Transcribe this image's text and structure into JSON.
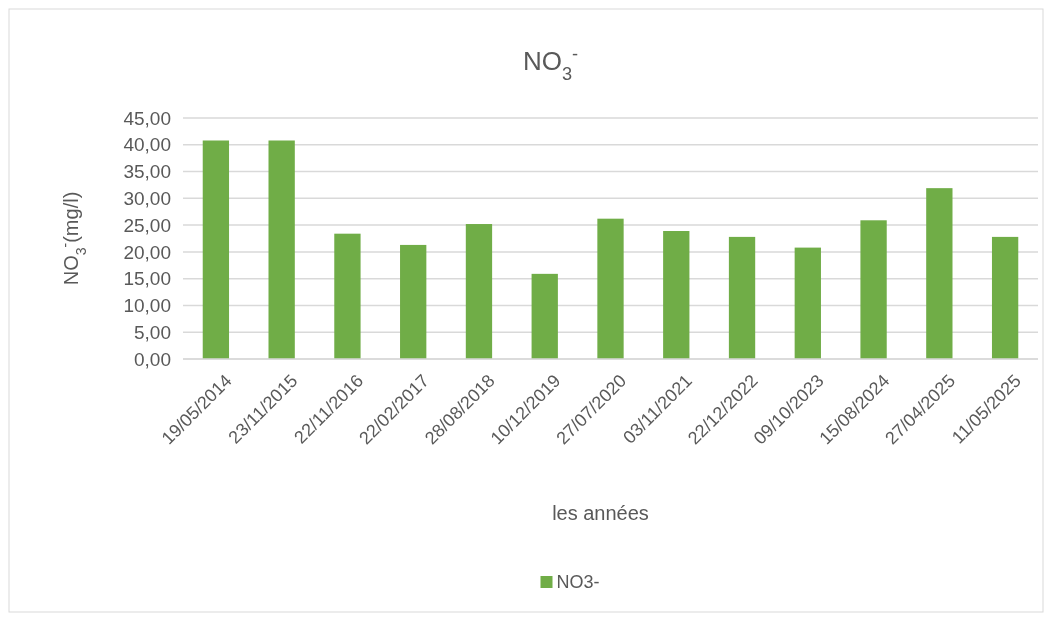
{
  "chart_data": {
    "type": "bar",
    "title": "NO$_{3}$$^{-}$",
    "xlabel": "les années",
    "ylabel": "NO$_{3}$$^{-}$(mg/l)",
    "categories": [
      "19/05/2014",
      "23/11/2015",
      "22/11/2016",
      "22/02/2017",
      "28/08/2018",
      "10/12/2019",
      "27/07/2020",
      "03/11/2021",
      "22/12/2022",
      "09/10/2023",
      "15/08/2024",
      "27/04/2025",
      "11/05/2025"
    ],
    "series": [
      {
        "name": "NO3-",
        "color": "#70ad47",
        "values": [
          40.8,
          40.8,
          23.4,
          21.3,
          25.2,
          15.9,
          26.2,
          23.9,
          22.8,
          20.8,
          25.9,
          31.9,
          22.8
        ]
      }
    ],
    "ylim": [
      0,
      45
    ],
    "yticks": [
      {
        "value": 0,
        "label": "0,00"
      },
      {
        "value": 5,
        "label": "5,00"
      },
      {
        "value": 10,
        "label": "10,00"
      },
      {
        "value": 15,
        "label": "15,00"
      },
      {
        "value": 20,
        "label": "20,00"
      },
      {
        "value": 25,
        "label": "25,00"
      },
      {
        "value": 30,
        "label": "30,00"
      },
      {
        "value": 35,
        "label": "35,00"
      },
      {
        "value": 40,
        "label": "40,00"
      },
      {
        "value": 45,
        "label": "45,00"
      }
    ],
    "grid": "y",
    "legend": "bottom"
  }
}
